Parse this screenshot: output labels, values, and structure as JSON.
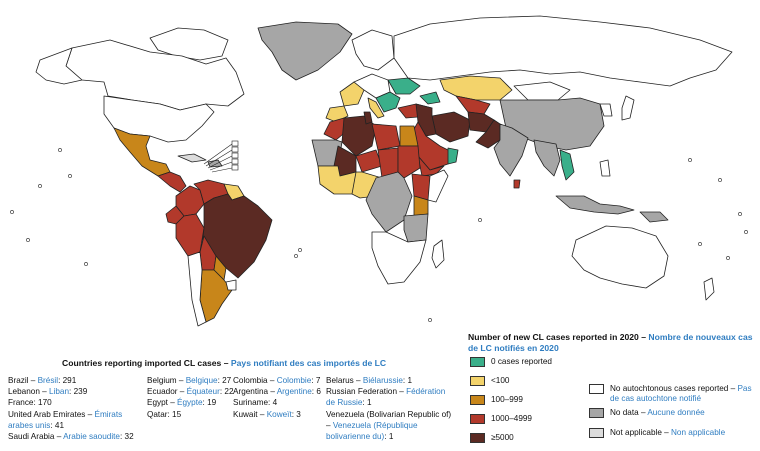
{
  "imported": {
    "title": "Countries reporting imported CL cases",
    "title_fr": "Pays notifiant des cas importés de LC",
    "columns": [
      [
        {
          "en": "Brazil",
          "fr": "Brésil",
          "value": "291"
        },
        {
          "en": "Lebanon",
          "fr": "Liban",
          "value": "239"
        },
        {
          "en": "France",
          "fr": "",
          "value": "170"
        },
        {
          "en": "United Arab Emirates",
          "fr": "Émirats arabes unis",
          "value": "41"
        },
        {
          "en": "Saudi Arabia",
          "fr": "Arabie saoudite",
          "value": "32"
        }
      ],
      [
        {
          "en": "Belgium",
          "fr": "Belgique",
          "value": "27"
        },
        {
          "en": "Ecuador",
          "fr": "Équateur",
          "value": "22"
        },
        {
          "en": "Egypt",
          "fr": "Égypte",
          "value": "19"
        },
        {
          "en": "Qatar",
          "fr": "",
          "value": "15"
        }
      ],
      [
        {
          "en": "Colombia",
          "fr": "Colombie",
          "value": "7"
        },
        {
          "en": "Argentina",
          "fr": "Argentine",
          "value": "6"
        },
        {
          "en": "Suriname",
          "fr": "",
          "value": "4"
        },
        {
          "en": "Kuwait",
          "fr": "Koweït",
          "value": "3"
        }
      ],
      [
        {
          "en": "Belarus",
          "fr": "Biélarussie",
          "value": "1"
        },
        {
          "en": "Russian Federation",
          "fr": "Fédération de Russie",
          "value": "1"
        },
        {
          "en": "Venezuela (Bolivarian Republic of)",
          "fr": "Venezuela (République bolivarienne du)",
          "value": "1"
        }
      ]
    ]
  },
  "legend": {
    "title": "Number of new CL cases reported in 2020",
    "title_fr": "Nombre de nouveaux cas de LC notifiés en 2020",
    "classes": [
      {
        "label": "0 cases reported",
        "label_fr": "",
        "color": "#3aaf8a"
      },
      {
        "label": "<100",
        "label_fr": "",
        "color": "#f3d36b"
      },
      {
        "label": "100–999",
        "label_fr": "",
        "color": "#c8861a"
      },
      {
        "label": "1000–4999",
        "label_fr": "",
        "color": "#b2392b"
      },
      {
        "label": "≥5000",
        "label_fr": "",
        "color": "#5b2a23"
      }
    ],
    "other": [
      {
        "label": "No autochtonous cases reported",
        "label_fr": "Pas de cas autochtone notifié",
        "color": "#ffffff"
      },
      {
        "label": "No data",
        "label_fr": "Aucune donnée",
        "color": "#a6a6a6"
      },
      {
        "label": "Not applicable",
        "label_fr": "Non applicable",
        "color": "#dcdcdc"
      }
    ]
  }
}
